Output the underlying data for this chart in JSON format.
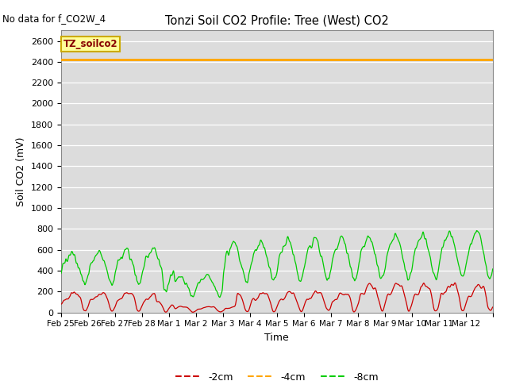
{
  "title": "Tonzi Soil CO2 Profile: Tree (West) CO2",
  "no_data_text": "No data for f_CO2W_4",
  "ylabel": "Soil CO2 (mV)",
  "xlabel": "Time",
  "ylim": [
    0,
    2700
  ],
  "yticks": [
    0,
    200,
    400,
    600,
    800,
    1000,
    1200,
    1400,
    1600,
    1800,
    2000,
    2200,
    2400,
    2600
  ],
  "flat_line_value": 2420,
  "flat_line_color": "#FFA500",
  "red_line_color": "#CC0000",
  "green_line_color": "#00CC00",
  "bg_color": "#DCDCDC",
  "legend_box_color": "#FFFF99",
  "legend_box_label": "TZ_soilco2",
  "legend_box_border": "#CCAA00",
  "legend_entries": [
    "-2cm",
    "-4cm",
    "-8cm"
  ],
  "x_start_day": 55,
  "x_end_day": 71,
  "xtick_positions": [
    55,
    56,
    57,
    58,
    59,
    60,
    61,
    62,
    63,
    64,
    65,
    66,
    67,
    68,
    69,
    70,
    71
  ],
  "xtick_labels": [
    "Feb 25",
    "Feb 26",
    "Feb 27",
    "Feb 28",
    "Mar 1",
    "Mar 2",
    "Mar 3",
    "Mar 4",
    "Mar 5",
    "Mar 6",
    "Mar 7",
    "Mar 8",
    "Mar 9",
    "Mar 10",
    "Mar 11",
    "Mar 12",
    ""
  ]
}
